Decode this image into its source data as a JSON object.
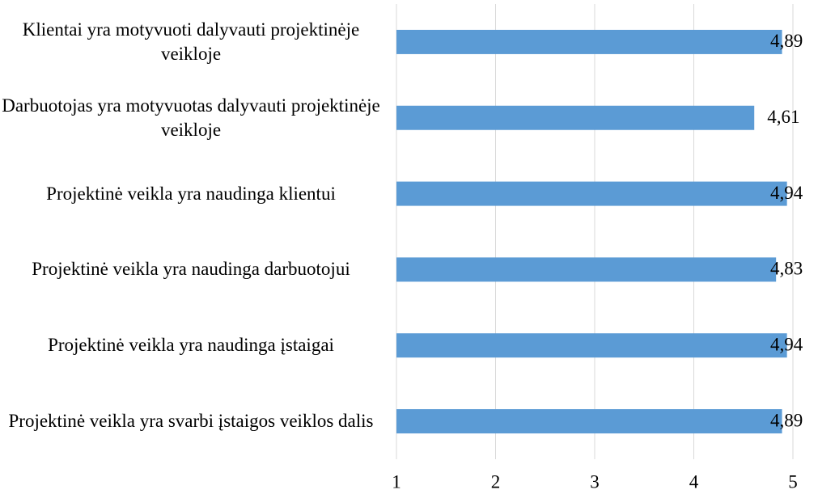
{
  "chart_data": {
    "type": "bar",
    "orientation": "horizontal",
    "categories": [
      "Klientai yra motyvuoti dalyvauti projektinėje veikloje",
      "Darbuotojas yra motyvuotas dalyvauti projektinėje veikloje",
      "Projektinė veikla yra naudinga klientui",
      "Projektinė veikla yra naudinga darbuotojui",
      "Projektinė veikla yra naudinga įstaigai",
      "Projektinė veikla yra svarbi įstaigos veiklos dalis"
    ],
    "values": [
      4.89,
      4.61,
      4.94,
      4.83,
      4.94,
      4.89
    ],
    "value_labels": [
      "4,89",
      "4,61",
      "4,94",
      "4,83",
      "4,94",
      "4,89"
    ],
    "color": "#5b9bd5",
    "xlim": [
      1,
      5
    ],
    "xticks": [
      1,
      2,
      3,
      4,
      5
    ],
    "grid": true
  }
}
